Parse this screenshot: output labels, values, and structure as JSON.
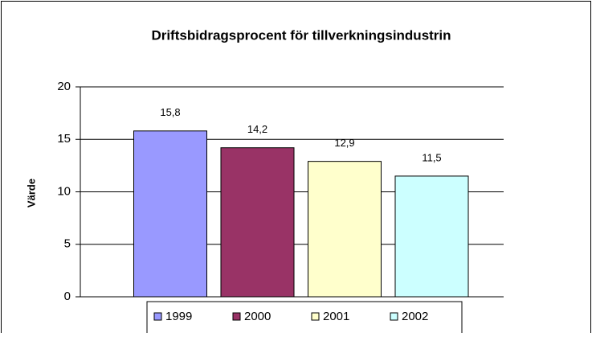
{
  "chart_data": {
    "type": "bar",
    "title": "Driftsbidragsprocent för tillverkningsindustrin",
    "ylabel": "Värde",
    "series": [
      {
        "name": "1999",
        "color": "#9999ff",
        "values": [
          15.8
        ],
        "value_labels": [
          "15,8"
        ]
      },
      {
        "name": "2000",
        "color": "#993366",
        "values": [
          14.2
        ],
        "value_labels": [
          "14,2"
        ]
      },
      {
        "name": "2001",
        "color": "#ffffcc",
        "values": [
          12.9
        ],
        "value_labels": [
          "12,9"
        ]
      },
      {
        "name": "2002",
        "color": "#ccffff",
        "values": [
          11.5
        ],
        "value_labels": [
          "11,5"
        ]
      }
    ],
    "ylim": [
      0,
      20
    ],
    "yticks": [
      0,
      5,
      10,
      15,
      20
    ],
    "grid": true,
    "legend": "bottom"
  }
}
